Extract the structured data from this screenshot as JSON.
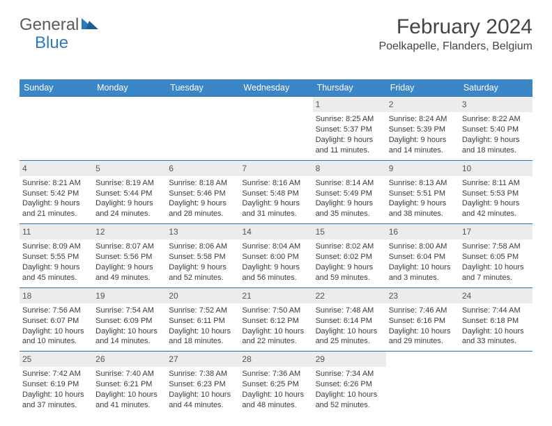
{
  "logo": {
    "text1": "General",
    "text2": "Blue"
  },
  "title": "February 2024",
  "location": "Poelkapelle, Flanders, Belgium",
  "colors": {
    "header_bg": "#3b86c6",
    "header_text": "#ffffff",
    "row_border": "#2e6da3",
    "daynum_bg": "#ececec",
    "logo_accent": "#2a7abf",
    "text": "#3a3a3a"
  },
  "day_labels": [
    "Sunday",
    "Monday",
    "Tuesday",
    "Wednesday",
    "Thursday",
    "Friday",
    "Saturday"
  ],
  "weeks": [
    [
      null,
      null,
      null,
      null,
      {
        "n": "1",
        "sr": "Sunrise: 8:25 AM",
        "ss": "Sunset: 5:37 PM",
        "d1": "Daylight: 9 hours",
        "d2": "and 11 minutes."
      },
      {
        "n": "2",
        "sr": "Sunrise: 8:24 AM",
        "ss": "Sunset: 5:39 PM",
        "d1": "Daylight: 9 hours",
        "d2": "and 14 minutes."
      },
      {
        "n": "3",
        "sr": "Sunrise: 8:22 AM",
        "ss": "Sunset: 5:40 PM",
        "d1": "Daylight: 9 hours",
        "d2": "and 18 minutes."
      }
    ],
    [
      {
        "n": "4",
        "sr": "Sunrise: 8:21 AM",
        "ss": "Sunset: 5:42 PM",
        "d1": "Daylight: 9 hours",
        "d2": "and 21 minutes."
      },
      {
        "n": "5",
        "sr": "Sunrise: 8:19 AM",
        "ss": "Sunset: 5:44 PM",
        "d1": "Daylight: 9 hours",
        "d2": "and 24 minutes."
      },
      {
        "n": "6",
        "sr": "Sunrise: 8:18 AM",
        "ss": "Sunset: 5:46 PM",
        "d1": "Daylight: 9 hours",
        "d2": "and 28 minutes."
      },
      {
        "n": "7",
        "sr": "Sunrise: 8:16 AM",
        "ss": "Sunset: 5:48 PM",
        "d1": "Daylight: 9 hours",
        "d2": "and 31 minutes."
      },
      {
        "n": "8",
        "sr": "Sunrise: 8:14 AM",
        "ss": "Sunset: 5:49 PM",
        "d1": "Daylight: 9 hours",
        "d2": "and 35 minutes."
      },
      {
        "n": "9",
        "sr": "Sunrise: 8:13 AM",
        "ss": "Sunset: 5:51 PM",
        "d1": "Daylight: 9 hours",
        "d2": "and 38 minutes."
      },
      {
        "n": "10",
        "sr": "Sunrise: 8:11 AM",
        "ss": "Sunset: 5:53 PM",
        "d1": "Daylight: 9 hours",
        "d2": "and 42 minutes."
      }
    ],
    [
      {
        "n": "11",
        "sr": "Sunrise: 8:09 AM",
        "ss": "Sunset: 5:55 PM",
        "d1": "Daylight: 9 hours",
        "d2": "and 45 minutes."
      },
      {
        "n": "12",
        "sr": "Sunrise: 8:07 AM",
        "ss": "Sunset: 5:56 PM",
        "d1": "Daylight: 9 hours",
        "d2": "and 49 minutes."
      },
      {
        "n": "13",
        "sr": "Sunrise: 8:06 AM",
        "ss": "Sunset: 5:58 PM",
        "d1": "Daylight: 9 hours",
        "d2": "and 52 minutes."
      },
      {
        "n": "14",
        "sr": "Sunrise: 8:04 AM",
        "ss": "Sunset: 6:00 PM",
        "d1": "Daylight: 9 hours",
        "d2": "and 56 minutes."
      },
      {
        "n": "15",
        "sr": "Sunrise: 8:02 AM",
        "ss": "Sunset: 6:02 PM",
        "d1": "Daylight: 9 hours",
        "d2": "and 59 minutes."
      },
      {
        "n": "16",
        "sr": "Sunrise: 8:00 AM",
        "ss": "Sunset: 6:04 PM",
        "d1": "Daylight: 10 hours",
        "d2": "and 3 minutes."
      },
      {
        "n": "17",
        "sr": "Sunrise: 7:58 AM",
        "ss": "Sunset: 6:05 PM",
        "d1": "Daylight: 10 hours",
        "d2": "and 7 minutes."
      }
    ],
    [
      {
        "n": "18",
        "sr": "Sunrise: 7:56 AM",
        "ss": "Sunset: 6:07 PM",
        "d1": "Daylight: 10 hours",
        "d2": "and 10 minutes."
      },
      {
        "n": "19",
        "sr": "Sunrise: 7:54 AM",
        "ss": "Sunset: 6:09 PM",
        "d1": "Daylight: 10 hours",
        "d2": "and 14 minutes."
      },
      {
        "n": "20",
        "sr": "Sunrise: 7:52 AM",
        "ss": "Sunset: 6:11 PM",
        "d1": "Daylight: 10 hours",
        "d2": "and 18 minutes."
      },
      {
        "n": "21",
        "sr": "Sunrise: 7:50 AM",
        "ss": "Sunset: 6:12 PM",
        "d1": "Daylight: 10 hours",
        "d2": "and 22 minutes."
      },
      {
        "n": "22",
        "sr": "Sunrise: 7:48 AM",
        "ss": "Sunset: 6:14 PM",
        "d1": "Daylight: 10 hours",
        "d2": "and 25 minutes."
      },
      {
        "n": "23",
        "sr": "Sunrise: 7:46 AM",
        "ss": "Sunset: 6:16 PM",
        "d1": "Daylight: 10 hours",
        "d2": "and 29 minutes."
      },
      {
        "n": "24",
        "sr": "Sunrise: 7:44 AM",
        "ss": "Sunset: 6:18 PM",
        "d1": "Daylight: 10 hours",
        "d2": "and 33 minutes."
      }
    ],
    [
      {
        "n": "25",
        "sr": "Sunrise: 7:42 AM",
        "ss": "Sunset: 6:19 PM",
        "d1": "Daylight: 10 hours",
        "d2": "and 37 minutes."
      },
      {
        "n": "26",
        "sr": "Sunrise: 7:40 AM",
        "ss": "Sunset: 6:21 PM",
        "d1": "Daylight: 10 hours",
        "d2": "and 41 minutes."
      },
      {
        "n": "27",
        "sr": "Sunrise: 7:38 AM",
        "ss": "Sunset: 6:23 PM",
        "d1": "Daylight: 10 hours",
        "d2": "and 44 minutes."
      },
      {
        "n": "28",
        "sr": "Sunrise: 7:36 AM",
        "ss": "Sunset: 6:25 PM",
        "d1": "Daylight: 10 hours",
        "d2": "and 48 minutes."
      },
      {
        "n": "29",
        "sr": "Sunrise: 7:34 AM",
        "ss": "Sunset: 6:26 PM",
        "d1": "Daylight: 10 hours",
        "d2": "and 52 minutes."
      },
      null,
      null
    ]
  ]
}
